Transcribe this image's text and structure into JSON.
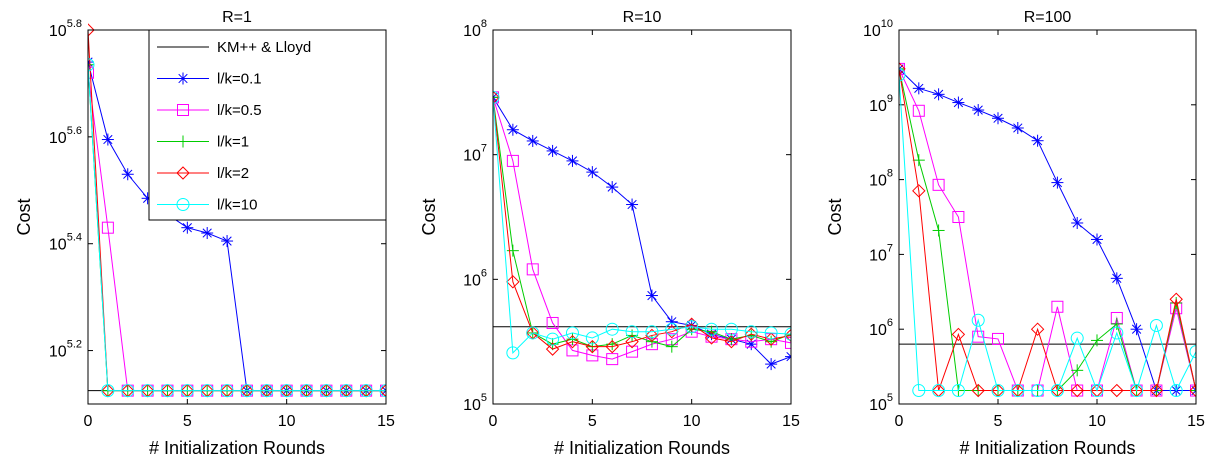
{
  "colors": {
    "baseline": "#000000",
    "l_k_0.1": "#0000ff",
    "l_k_0.5": "#ff00ff",
    "l_k_1": "#00cc00",
    "l_k_2": "#ff0000",
    "l_k_10": "#00ffff"
  },
  "chart_data": [
    {
      "type": "line",
      "title": "R=1",
      "xlabel": "# Initialization Rounds",
      "ylabel": "Cost",
      "xlim": [
        0,
        15
      ],
      "ylim_log10": [
        5.1,
        5.8
      ],
      "log_scale_y": true,
      "xticks": [
        "0",
        "5",
        "10",
        "15"
      ],
      "yticks": [
        {
          "base": "10",
          "exp": "5.2",
          "log": 5.2
        },
        {
          "base": "10",
          "exp": "5.4",
          "log": 5.4
        },
        {
          "base": "10",
          "exp": "5.6",
          "log": 5.6
        },
        {
          "base": "10",
          "exp": "5.8",
          "log": 5.8
        }
      ],
      "grid": false,
      "legend_position": "top-right",
      "baseline": {
        "name": "KM++ & Lloyd",
        "log_value": 5.125
      },
      "series": [
        {
          "name": "l/k=0.1",
          "marker": "asterisk",
          "log_values": [
            5.74,
            5.595,
            5.53,
            5.485,
            5.455,
            5.43,
            5.42,
            5.405,
            5.125,
            5.125,
            5.125,
            5.125,
            5.125,
            5.125,
            5.125,
            5.125
          ]
        },
        {
          "name": "l/k=0.5",
          "marker": "square",
          "log_values": [
            5.72,
            5.43,
            5.125,
            5.125,
            5.125,
            5.125,
            5.125,
            5.125,
            5.125,
            5.125,
            5.125,
            5.125,
            5.125,
            5.125,
            5.125,
            5.125
          ]
        },
        {
          "name": "l/k=1",
          "marker": "plus",
          "log_values": [
            5.735,
            5.125,
            5.125,
            5.125,
            5.125,
            5.125,
            5.125,
            5.125,
            5.125,
            5.125,
            5.125,
            5.125,
            5.125,
            5.125,
            5.125,
            5.125
          ]
        },
        {
          "name": "l/k=2",
          "marker": "diamond",
          "log_values": [
            5.8,
            5.125,
            5.125,
            5.125,
            5.125,
            5.125,
            5.125,
            5.125,
            5.125,
            5.125,
            5.125,
            5.125,
            5.125,
            5.125,
            5.125,
            5.125
          ]
        },
        {
          "name": "l/k=10",
          "marker": "circle",
          "log_values": [
            5.735,
            5.125,
            5.125,
            5.125,
            5.125,
            5.125,
            5.125,
            5.125,
            5.125,
            5.125,
            5.125,
            5.125,
            5.125,
            5.125,
            5.125,
            5.125
          ]
        }
      ]
    },
    {
      "type": "line",
      "title": "R=10",
      "xlabel": "# Initialization Rounds",
      "ylabel": "Cost",
      "xlim": [
        0,
        15
      ],
      "ylim_log10": [
        5,
        8
      ],
      "log_scale_y": true,
      "xticks": [
        "0",
        "5",
        "10",
        "15"
      ],
      "yticks": [
        {
          "base": "10",
          "exp": "5",
          "log": 5
        },
        {
          "base": "10",
          "exp": "6",
          "log": 6
        },
        {
          "base": "10",
          "exp": "7",
          "log": 7
        },
        {
          "base": "10",
          "exp": "8",
          "log": 8
        }
      ],
      "grid": false,
      "baseline": {
        "name": "KM++ & Lloyd",
        "log_value": 5.62
      },
      "series": [
        {
          "name": "l/k=0.1",
          "marker": "asterisk",
          "log_values": [
            7.46,
            7.2,
            7.11,
            7.03,
            6.95,
            6.86,
            6.74,
            6.6,
            5.87,
            5.66,
            5.63,
            5.56,
            5.52,
            5.48,
            5.32,
            5.38
          ]
        },
        {
          "name": "l/k=0.5",
          "marker": "square",
          "log_values": [
            7.46,
            6.95,
            6.08,
            5.65,
            5.43,
            5.39,
            5.36,
            5.42,
            5.48,
            5.52,
            5.58,
            5.54,
            5.52,
            5.5,
            5.52,
            5.49
          ]
        },
        {
          "name": "l/k=1",
          "marker": "plus",
          "log_values": [
            7.46,
            6.23,
            5.57,
            5.48,
            5.52,
            5.46,
            5.48,
            5.55,
            5.5,
            5.46,
            5.6,
            5.58,
            5.52,
            5.55,
            5.5,
            5.56
          ]
        },
        {
          "name": "l/k=2",
          "marker": "diamond",
          "log_values": [
            7.46,
            5.98,
            5.57,
            5.44,
            5.5,
            5.46,
            5.46,
            5.5,
            5.55,
            5.58,
            5.64,
            5.53,
            5.5,
            5.56,
            5.52,
            5.55
          ]
        },
        {
          "name": "l/k=10",
          "marker": "circle",
          "log_values": [
            7.46,
            5.41,
            5.57,
            5.52,
            5.57,
            5.53,
            5.6,
            5.58,
            5.58,
            5.6,
            5.62,
            5.6,
            5.6,
            5.58,
            5.57,
            5.56
          ]
        }
      ]
    },
    {
      "type": "line",
      "title": "R=100",
      "xlabel": "# Initialization Rounds",
      "ylabel": "Cost",
      "xlim": [
        0,
        15
      ],
      "ylim_log10": [
        5,
        10
      ],
      "log_scale_y": true,
      "xticks": [
        "0",
        "5",
        "10",
        "15"
      ],
      "yticks": [
        {
          "base": "10",
          "exp": "5",
          "log": 5
        },
        {
          "base": "10",
          "exp": "6",
          "log": 6
        },
        {
          "base": "10",
          "exp": "7",
          "log": 7
        },
        {
          "base": "10",
          "exp": "8",
          "log": 8
        },
        {
          "base": "10",
          "exp": "9",
          "log": 9
        },
        {
          "base": "10",
          "exp": "10",
          "log": 10
        }
      ],
      "grid": false,
      "baseline": {
        "name": "KM++ & Lloyd",
        "log_value": 5.8
      },
      "series": [
        {
          "name": "l/k=0.1",
          "marker": "asterisk",
          "log_values": [
            9.48,
            9.22,
            9.14,
            9.03,
            8.93,
            8.82,
            8.69,
            8.52,
            7.96,
            7.42,
            7.2,
            6.68,
            6.0,
            5.18,
            5.18,
            5.18
          ]
        },
        {
          "name": "l/k=0.5",
          "marker": "square",
          "log_values": [
            9.48,
            8.92,
            7.93,
            7.5,
            5.9,
            5.87,
            5.18,
            5.18,
            6.3,
            5.18,
            5.18,
            6.15,
            5.18,
            5.18,
            6.28,
            5.18
          ]
        },
        {
          "name": "l/k=1",
          "marker": "plus",
          "log_values": [
            9.48,
            8.26,
            7.32,
            5.18,
            5.18,
            5.18,
            5.18,
            5.18,
            5.18,
            5.45,
            5.85,
            6.07,
            5.18,
            5.18,
            6.35,
            5.18
          ]
        },
        {
          "name": "l/k=2",
          "marker": "diamond",
          "log_values": [
            9.48,
            7.85,
            5.18,
            5.93,
            5.18,
            5.18,
            5.18,
            6.0,
            5.18,
            5.18,
            5.18,
            5.18,
            5.18,
            5.18,
            6.4,
            5.18
          ]
        },
        {
          "name": "l/k=10",
          "marker": "circle",
          "log_values": [
            9.4,
            5.18,
            5.18,
            5.18,
            6.12,
            5.18,
            5.18,
            5.18,
            5.18,
            5.88,
            5.18,
            5.95,
            5.18,
            6.05,
            5.18,
            5.7
          ]
        }
      ]
    }
  ]
}
